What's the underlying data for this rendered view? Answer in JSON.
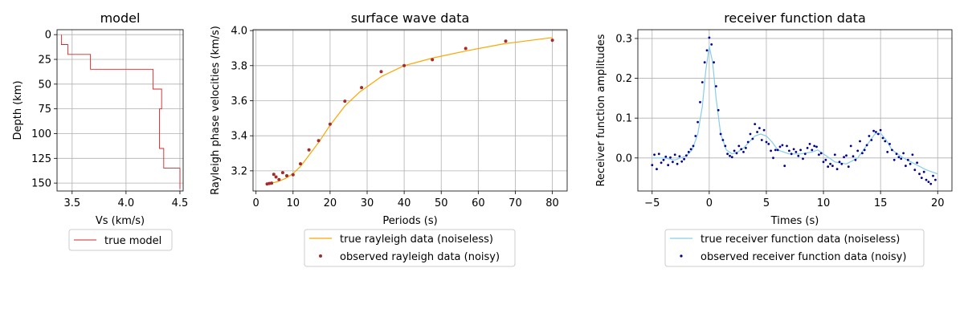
{
  "chart_data": [
    {
      "type": "line",
      "title": "model",
      "xlabel": "Vs (km/s)",
      "ylabel": "Depth (km)",
      "xlim": [
        3.36,
        4.53
      ],
      "ylim": [
        -5,
        158
      ],
      "y_inverted": true,
      "xticks": [
        3.5,
        4.0,
        4.5
      ],
      "xtick_labels": [
        "3.5",
        "4.0",
        "4.5"
      ],
      "yticks": [
        0,
        25,
        50,
        75,
        100,
        125,
        150
      ],
      "ytick_labels": [
        "0",
        "25",
        "50",
        "75",
        "100",
        "125",
        "150"
      ],
      "grid": true,
      "legend_position": "below",
      "series": [
        {
          "name": "true model",
          "color": "#d62728",
          "style": "step",
          "vs": [
            3.4,
            3.4,
            3.46,
            3.46,
            3.67,
            3.67,
            4.25,
            4.25,
            4.33,
            4.33,
            4.31,
            4.31,
            4.35,
            4.35,
            4.5,
            4.5
          ],
          "depth": [
            0,
            10,
            10,
            20,
            20,
            35,
            35,
            55,
            55,
            75,
            75,
            115,
            115,
            135,
            135,
            156
          ]
        }
      ]
    },
    {
      "type": "line",
      "title": "surface wave data",
      "xlabel": "Periods (s)",
      "ylabel": "Rayleigh phase velocities (km/s)",
      "xlim": [
        -0.8,
        84
      ],
      "ylim": [
        3.085,
        4.005
      ],
      "xticks": [
        0,
        10,
        20,
        30,
        40,
        50,
        60,
        70,
        80
      ],
      "xtick_labels": [
        "0",
        "10",
        "20",
        "30",
        "40",
        "50",
        "60",
        "70",
        "80"
      ],
      "yticks": [
        3.2,
        3.4,
        3.6,
        3.8,
        4.0
      ],
      "ytick_labels": [
        "3.2",
        "3.4",
        "3.6",
        "3.8",
        "4.0"
      ],
      "grid": true,
      "legend_position": "below",
      "series": [
        {
          "name": "true rayleigh data (noiseless)",
          "color": "#ffa500",
          "kind": "line",
          "x": [
            3,
            4,
            5,
            6,
            8,
            10,
            12,
            14,
            17,
            20,
            24,
            28,
            34,
            40,
            48,
            57,
            67,
            80
          ],
          "y": [
            3.13,
            3.131,
            3.134,
            3.14,
            3.157,
            3.185,
            3.225,
            3.28,
            3.365,
            3.46,
            3.57,
            3.65,
            3.74,
            3.8,
            3.845,
            3.885,
            3.925,
            3.96
          ]
        },
        {
          "name": "observed rayleigh data (noisy)",
          "color": "#a52a2a",
          "kind": "scatter",
          "x": [
            3,
            3.6,
            4.2,
            4.8,
            5.4,
            6.2,
            7.2,
            8.3,
            10.0,
            12.0,
            14.3,
            16.9,
            20.0,
            24.0,
            28.5,
            33.8,
            40.0,
            47.6,
            56.6,
            67.4,
            80.0
          ],
          "y": [
            3.125,
            3.128,
            3.13,
            3.18,
            3.165,
            3.15,
            3.19,
            3.172,
            3.178,
            3.24,
            3.32,
            3.372,
            3.466,
            3.597,
            3.675,
            3.766,
            3.8,
            3.834,
            3.898,
            3.94,
            3.945
          ]
        }
      ]
    },
    {
      "type": "line",
      "title": "receiver function data",
      "xlabel": "Times (s)",
      "ylabel": "Receiver function amplitudes",
      "xlim": [
        -6.25,
        21.25
      ],
      "ylim": [
        -0.083,
        0.322
      ],
      "xticks": [
        -5,
        0,
        5,
        10,
        15,
        20
      ],
      "xtick_labels": [
        "−5",
        "0",
        "5",
        "10",
        "15",
        "20"
      ],
      "yticks": [
        0.0,
        0.1,
        0.2,
        0.3
      ],
      "ytick_labels": [
        "0.0",
        "0.1",
        "0.2",
        "0.3"
      ],
      "grid": true,
      "legend_position": "below",
      "series": [
        {
          "name": "true receiver function data (noiseless)",
          "color": "#87ceeb",
          "kind": "line",
          "x": [
            -5.0,
            -4.0,
            -3.0,
            -2.0,
            -1.5,
            -1.0,
            -0.6,
            -0.3,
            0.0,
            0.3,
            0.6,
            1.0,
            1.5,
            2.0,
            2.5,
            3.0,
            3.5,
            4.0,
            4.5,
            5.0,
            5.5,
            6.0,
            7.0,
            8.0,
            9.0,
            9.5,
            10.0,
            11.0,
            12.0,
            13.0,
            13.5,
            14.0,
            14.5,
            15.0,
            15.5,
            16.0,
            17.0,
            18.0,
            19.0,
            20.0
          ],
          "y": [
            0.0,
            0.0,
            -0.005,
            0.005,
            0.02,
            0.06,
            0.13,
            0.22,
            0.28,
            0.24,
            0.15,
            0.06,
            0.02,
            0.01,
            0.015,
            0.025,
            0.04,
            0.055,
            0.06,
            0.055,
            0.04,
            0.02,
            0.01,
            0.01,
            0.015,
            0.02,
            0.01,
            -0.01,
            -0.015,
            0.0,
            0.02,
            0.04,
            0.06,
            0.062,
            0.045,
            0.02,
            0.0,
            -0.015,
            -0.03,
            -0.04
          ]
        },
        {
          "name": "observed receiver function data (noisy)",
          "color": "#00008b",
          "kind": "scatter",
          "x": [
            -5.0,
            -4.8,
            -4.6,
            -4.4,
            -4.2,
            -4.0,
            -3.8,
            -3.6,
            -3.4,
            -3.2,
            -3.0,
            -2.8,
            -2.6,
            -2.4,
            -2.2,
            -2.0,
            -1.8,
            -1.6,
            -1.4,
            -1.2,
            -1.0,
            -0.8,
            -0.6,
            -0.4,
            -0.2,
            0.0,
            0.2,
            0.4,
            0.6,
            0.8,
            1.0,
            1.2,
            1.4,
            1.6,
            1.8,
            2.0,
            2.2,
            2.4,
            2.6,
            2.8,
            3.0,
            3.2,
            3.4,
            3.6,
            3.8,
            4.0,
            4.2,
            4.4,
            4.6,
            4.8,
            5.0,
            5.2,
            5.4,
            5.6,
            5.8,
            6.0,
            6.2,
            6.4,
            6.6,
            6.8,
            7.0,
            7.2,
            7.4,
            7.6,
            7.8,
            8.0,
            8.2,
            8.4,
            8.6,
            8.8,
            9.0,
            9.2,
            9.4,
            9.6,
            9.8,
            10.0,
            10.2,
            10.4,
            10.6,
            10.8,
            11.0,
            11.2,
            11.4,
            11.6,
            11.8,
            12.0,
            12.2,
            12.4,
            12.6,
            12.8,
            13.0,
            13.2,
            13.4,
            13.6,
            13.8,
            14.0,
            14.2,
            14.4,
            14.6,
            14.8,
            15.0,
            15.2,
            15.4,
            15.6,
            15.8,
            16.0,
            16.2,
            16.4,
            16.6,
            16.8,
            17.0,
            17.2,
            17.4,
            17.6,
            17.8,
            18.0,
            18.2,
            18.4,
            18.6,
            18.8,
            19.0,
            19.2,
            19.4,
            19.6,
            19.8
          ],
          "y": [
            -0.018,
            0.008,
            -0.028,
            0.01,
            -0.012,
            -0.005,
            0.003,
            -0.018,
            0.001,
            -0.01,
            0.008,
            -0.015,
            0.004,
            -0.009,
            -0.003,
            0.006,
            0.015,
            0.022,
            0.03,
            0.055,
            0.09,
            0.14,
            0.19,
            0.24,
            0.27,
            0.302,
            0.285,
            0.24,
            0.18,
            0.12,
            0.06,
            0.045,
            0.03,
            0.01,
            0.005,
            0.002,
            0.018,
            0.012,
            0.03,
            0.022,
            0.015,
            0.025,
            0.04,
            0.06,
            0.048,
            0.085,
            0.065,
            0.075,
            0.045,
            0.07,
            0.04,
            0.035,
            0.018,
            0.0,
            0.02,
            0.02,
            0.028,
            0.032,
            -0.02,
            0.03,
            0.018,
            0.01,
            0.022,
            0.015,
            0.005,
            0.02,
            -0.002,
            0.01,
            0.025,
            0.035,
            0.02,
            0.03,
            0.028,
            0.008,
            0.012,
            -0.01,
            -0.005,
            -0.022,
            -0.015,
            -0.02,
            0.008,
            -0.028,
            -0.01,
            -0.015,
            0.002,
            0.006,
            -0.022,
            0.03,
            0.004,
            -0.005,
            0.018,
            0.042,
            0.012,
            0.02,
            0.032,
            0.055,
            0.045,
            0.068,
            0.065,
            0.06,
            0.07,
            0.05,
            0.042,
            0.015,
            0.035,
            0.02,
            -0.005,
            0.01,
            0.002,
            -0.002,
            0.012,
            -0.02,
            -0.005,
            -0.015,
            0.008,
            -0.03,
            -0.012,
            -0.04,
            -0.05,
            -0.035,
            -0.055,
            -0.06,
            -0.065,
            -0.045,
            -0.055
          ]
        }
      ]
    }
  ]
}
